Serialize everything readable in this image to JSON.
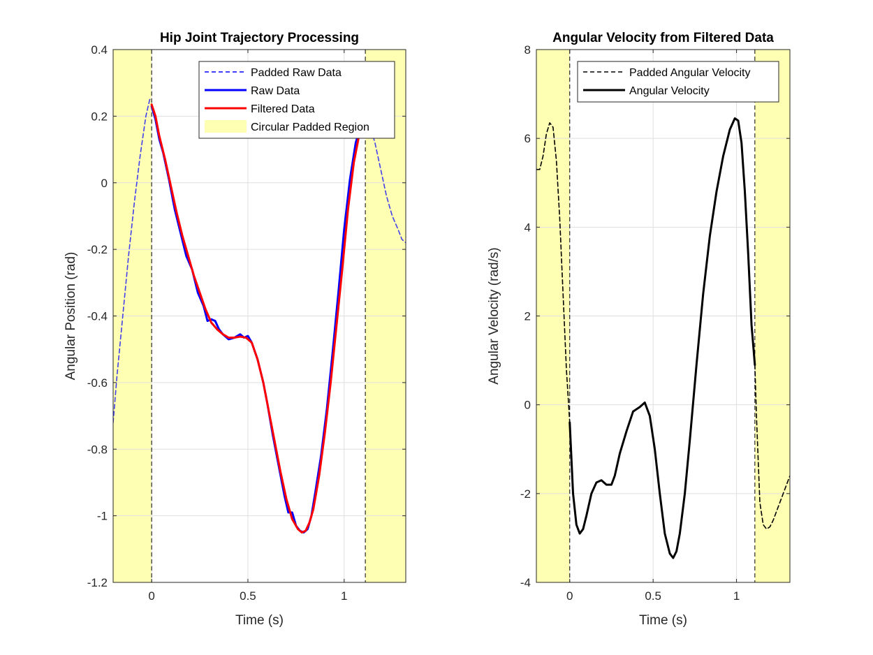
{
  "figure": {
    "background": "#ffffff"
  },
  "chart_data": [
    {
      "type": "line",
      "title": "Hip Joint Trajectory Processing",
      "xlabel": "Time (s)",
      "ylabel": "Angular Position (rad)",
      "xlim": [
        -0.2,
        1.32
      ],
      "ylim": [
        -1.2,
        0.4
      ],
      "xticks": [
        0,
        0.5,
        1
      ],
      "xtick_labels": [
        "0",
        "0.5",
        "1"
      ],
      "yticks": [
        -1.2,
        -1,
        -0.8,
        -0.6,
        -0.4,
        -0.2,
        0,
        0.2,
        0.4
      ],
      "ytick_labels": [
        "-1.2",
        "-1",
        "-0.8",
        "-0.6",
        "-0.4",
        "-0.2",
        "0",
        "0.2",
        "0.4"
      ],
      "grid": true,
      "legend_position": "top-right",
      "padded_regions": [
        [
          -0.2,
          0
        ],
        [
          1.11,
          1.32
        ]
      ],
      "boundary_lines": [
        0,
        1.11
      ],
      "series": [
        {
          "name": "Padded Raw Data",
          "style": "dashed",
          "color": "#0000ff",
          "x": [
            -0.2,
            -0.18,
            -0.15,
            -0.12,
            -0.09,
            -0.06,
            -0.03,
            -0.01,
            0,
            1.11,
            1.13,
            1.16,
            1.19,
            1.22,
            1.25,
            1.28,
            1.3,
            1.32
          ],
          "y": [
            -0.72,
            -0.58,
            -0.4,
            -0.22,
            -0.06,
            0.08,
            0.2,
            0.25,
            0.255,
            0.22,
            0.18,
            0.12,
            0.04,
            -0.04,
            -0.1,
            -0.14,
            -0.17,
            -0.18
          ]
        },
        {
          "name": "Raw Data",
          "style": "solid",
          "color": "#0000ff",
          "x": [
            0,
            0.02,
            0.04,
            0.06,
            0.09,
            0.12,
            0.15,
            0.18,
            0.21,
            0.24,
            0.27,
            0.29,
            0.31,
            0.33,
            0.35,
            0.37,
            0.4,
            0.43,
            0.46,
            0.48,
            0.5,
            0.52,
            0.55,
            0.58,
            0.6,
            0.63,
            0.66,
            0.69,
            0.71,
            0.73,
            0.75,
            0.77,
            0.79,
            0.81,
            0.83,
            0.85,
            0.88,
            0.91,
            0.94,
            0.97,
            1.0,
            1.03,
            1.06,
            1.09,
            1.11
          ],
          "y": [
            0.23,
            0.19,
            0.13,
            0.09,
            0.01,
            -0.08,
            -0.15,
            -0.22,
            -0.26,
            -0.33,
            -0.37,
            -0.415,
            -0.41,
            -0.415,
            -0.44,
            -0.455,
            -0.47,
            -0.465,
            -0.455,
            -0.465,
            -0.46,
            -0.48,
            -0.53,
            -0.6,
            -0.66,
            -0.76,
            -0.85,
            -0.94,
            -0.99,
            -0.99,
            -1.03,
            -1.045,
            -1.05,
            -1.04,
            -1.0,
            -0.93,
            -0.82,
            -0.68,
            -0.51,
            -0.33,
            -0.14,
            0.01,
            0.12,
            0.18,
            0.22
          ]
        },
        {
          "name": "Filtered Data",
          "style": "solid",
          "color": "#ff0000",
          "x": [
            0,
            0.02,
            0.04,
            0.07,
            0.1,
            0.13,
            0.16,
            0.19,
            0.22,
            0.25,
            0.28,
            0.31,
            0.34,
            0.37,
            0.4,
            0.43,
            0.46,
            0.49,
            0.52,
            0.55,
            0.58,
            0.61,
            0.64,
            0.67,
            0.7,
            0.73,
            0.76,
            0.78,
            0.8,
            0.82,
            0.84,
            0.87,
            0.9,
            0.93,
            0.96,
            0.99,
            1.02,
            1.05,
            1.08,
            1.11
          ],
          "y": [
            0.235,
            0.2,
            0.14,
            0.07,
            -0.01,
            -0.09,
            -0.16,
            -0.22,
            -0.28,
            -0.33,
            -0.38,
            -0.42,
            -0.44,
            -0.455,
            -0.465,
            -0.465,
            -0.462,
            -0.465,
            -0.48,
            -0.53,
            -0.6,
            -0.69,
            -0.78,
            -0.87,
            -0.95,
            -1.01,
            -1.04,
            -1.05,
            -1.045,
            -1.02,
            -0.98,
            -0.88,
            -0.75,
            -0.6,
            -0.43,
            -0.26,
            -0.08,
            0.06,
            0.15,
            0.2
          ]
        }
      ],
      "legend": [
        "Padded Raw Data",
        "Raw Data",
        "Filtered Data",
        "Circular Padded Region"
      ],
      "padded_region_color": "#ffffb3"
    },
    {
      "type": "line",
      "title": "Angular Velocity from Filtered Data",
      "xlabel": "Time (s)",
      "ylabel": "Angular Velocity (rad/s)",
      "xlim": [
        -0.2,
        1.32
      ],
      "ylim": [
        -4,
        8
      ],
      "xticks": [
        0,
        0.5,
        1
      ],
      "xtick_labels": [
        "0",
        "0.5",
        "1"
      ],
      "yticks": [
        -4,
        -2,
        0,
        2,
        4,
        6,
        8
      ],
      "ytick_labels": [
        "-4",
        "-2",
        "0",
        "2",
        "4",
        "6",
        "8"
      ],
      "grid": true,
      "legend_position": "top-right",
      "padded_regions": [
        [
          -0.2,
          0
        ],
        [
          1.11,
          1.32
        ]
      ],
      "boundary_lines": [
        0,
        1.11
      ],
      "series": [
        {
          "name": "Padded Angular Velocity",
          "style": "dashed",
          "color": "#000000",
          "x": [
            -0.2,
            -0.18,
            -0.16,
            -0.14,
            -0.12,
            -0.1,
            -0.08,
            -0.06,
            -0.04,
            -0.02,
            0,
            1.11,
            1.12,
            1.14,
            1.16,
            1.18,
            1.2,
            1.22,
            1.25,
            1.28,
            1.3,
            1.32
          ],
          "y": [
            5.3,
            5.3,
            5.6,
            6.1,
            6.35,
            6.25,
            5.5,
            4.2,
            2.5,
            0.8,
            -0.4,
            0.9,
            -0.3,
            -2.2,
            -2.7,
            -2.8,
            -2.75,
            -2.6,
            -2.3,
            -2.0,
            -1.8,
            -1.6
          ]
        },
        {
          "name": "Angular Velocity",
          "style": "solid",
          "color": "#000000",
          "x": [
            0,
            0.02,
            0.04,
            0.06,
            0.08,
            0.1,
            0.13,
            0.16,
            0.19,
            0.22,
            0.25,
            0.27,
            0.3,
            0.34,
            0.38,
            0.42,
            0.45,
            0.48,
            0.51,
            0.54,
            0.57,
            0.6,
            0.62,
            0.64,
            0.66,
            0.69,
            0.72,
            0.76,
            0.8,
            0.84,
            0.88,
            0.92,
            0.96,
            0.99,
            1.01,
            1.03,
            1.05,
            1.07,
            1.09,
            1.11
          ],
          "y": [
            -0.4,
            -2.0,
            -2.7,
            -2.9,
            -2.8,
            -2.5,
            -2.0,
            -1.75,
            -1.7,
            -1.8,
            -1.8,
            -1.6,
            -1.1,
            -0.6,
            -0.15,
            -0.05,
            0.05,
            -0.25,
            -1.0,
            -2.0,
            -2.9,
            -3.35,
            -3.45,
            -3.3,
            -2.9,
            -2.0,
            -0.8,
            0.9,
            2.5,
            3.8,
            4.8,
            5.6,
            6.2,
            6.45,
            6.4,
            5.9,
            4.8,
            3.4,
            1.8,
            0.9
          ]
        }
      ],
      "legend": [
        "Padded Angular Velocity",
        "Angular Velocity"
      ],
      "padded_region_color": "#ffffb3"
    }
  ]
}
